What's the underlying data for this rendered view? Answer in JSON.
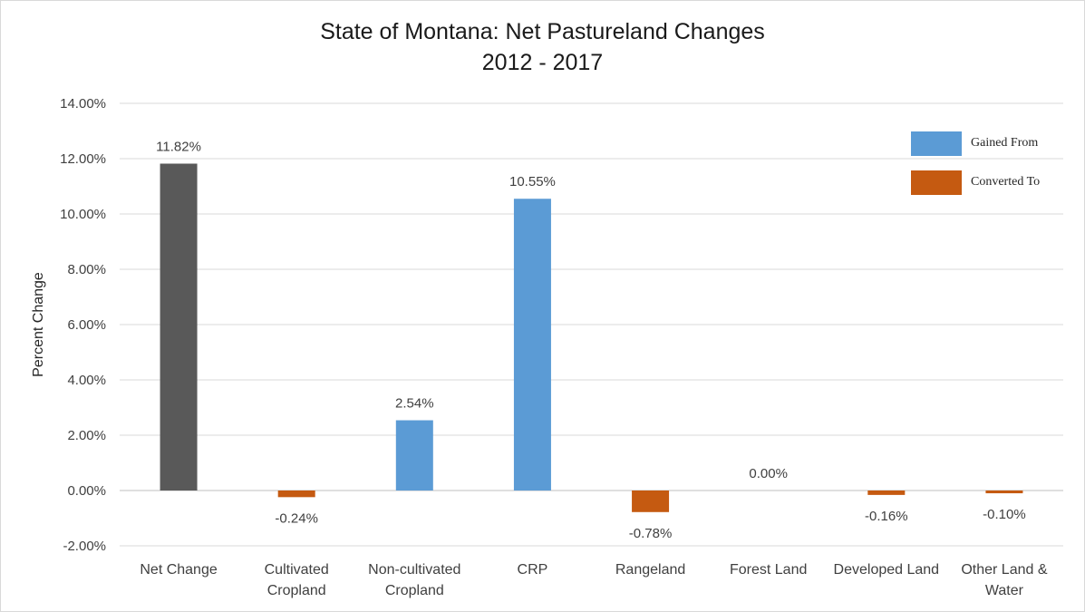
{
  "title_line1": "State of Montana: Net Pastureland Changes",
  "title_line2": "2012 - 2017",
  "chart_data": {
    "type": "bar",
    "title": "State of Montana: Net Pastureland Changes 2012 - 2017",
    "ylabel": "Percent Change",
    "xlabel": "",
    "ylim": [
      -0.02,
      0.14
    ],
    "yticks": [
      "-2.00%",
      "0.00%",
      "2.00%",
      "4.00%",
      "6.00%",
      "8.00%",
      "10.00%",
      "12.00%",
      "14.00%"
    ],
    "ytick_values": [
      -0.02,
      0,
      0.02,
      0.04,
      0.06,
      0.08,
      0.1,
      0.12,
      0.14
    ],
    "grid": true,
    "legend_position": "top-right",
    "categories": [
      [
        "Net Change"
      ],
      [
        "Cultivated",
        "Cropland"
      ],
      [
        "Non-cultivated",
        "Cropland"
      ],
      [
        "CRP"
      ],
      [
        "Rangeland"
      ],
      [
        "Forest Land"
      ],
      [
        "Developed Land"
      ],
      [
        "Other Land &",
        "Water"
      ]
    ],
    "values": [
      0.1182,
      -0.0024,
      0.0254,
      0.1055,
      -0.0078,
      0.0,
      -0.0016,
      -0.001
    ],
    "data_labels": [
      "11.82%",
      "-0.24%",
      "2.54%",
      "10.55%",
      "-0.78%",
      "0.00%",
      "-0.16%",
      "-0.10%"
    ],
    "bar_colors": [
      "#595959",
      "#c55a11",
      "#5b9bd5",
      "#5b9bd5",
      "#c55a11",
      "#5b9bd5",
      "#c55a11",
      "#c55a11"
    ],
    "legend": [
      {
        "label": "Gained From",
        "color": "#5b9bd5"
      },
      {
        "label": "Converted To",
        "color": "#c55a11"
      }
    ]
  }
}
